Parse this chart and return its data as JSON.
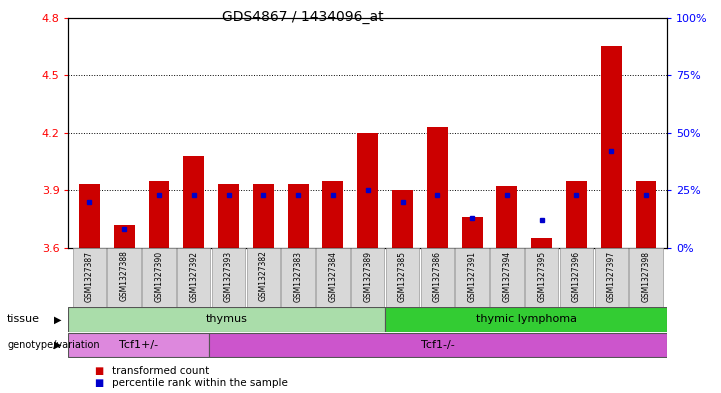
{
  "title": "GDS4867 / 1434096_at",
  "samples": [
    "GSM1327387",
    "GSM1327388",
    "GSM1327390",
    "GSM1327392",
    "GSM1327393",
    "GSM1327382",
    "GSM1327383",
    "GSM1327384",
    "GSM1327389",
    "GSM1327385",
    "GSM1327386",
    "GSM1327391",
    "GSM1327394",
    "GSM1327395",
    "GSM1327396",
    "GSM1327397",
    "GSM1327398"
  ],
  "transformed_count": [
    3.93,
    3.72,
    3.95,
    4.08,
    3.93,
    3.93,
    3.93,
    3.95,
    4.2,
    3.9,
    4.23,
    3.76,
    3.92,
    3.65,
    3.95,
    4.65,
    3.95
  ],
  "percentile_rank": [
    20,
    8,
    23,
    23,
    23,
    23,
    23,
    23,
    25,
    20,
    23,
    13,
    23,
    12,
    23,
    42,
    23
  ],
  "ylim_left": [
    3.6,
    4.8
  ],
  "ylim_right": [
    0,
    100
  ],
  "yticks_left": [
    3.6,
    3.9,
    4.2,
    4.5,
    4.8
  ],
  "yticks_right": [
    0,
    25,
    50,
    75,
    100
  ],
  "bar_color": "#cc0000",
  "dot_color": "#0000cc",
  "plot_bg": "#ffffff",
  "tissue_groups": [
    {
      "label": "thymus",
      "start": 0,
      "end": 8,
      "color": "#aaddaa"
    },
    {
      "label": "thymic lymphoma",
      "start": 9,
      "end": 16,
      "color": "#33cc33"
    }
  ],
  "genotype_groups": [
    {
      "label": "Tcf1+/-",
      "start": 0,
      "end": 3,
      "color": "#dd88dd"
    },
    {
      "label": "Tcf1-/-",
      "start": 4,
      "end": 16,
      "color": "#cc55cc"
    }
  ],
  "legend_items": [
    {
      "label": "transformed count",
      "color": "#cc0000"
    },
    {
      "label": "percentile rank within the sample",
      "color": "#0000cc"
    }
  ]
}
